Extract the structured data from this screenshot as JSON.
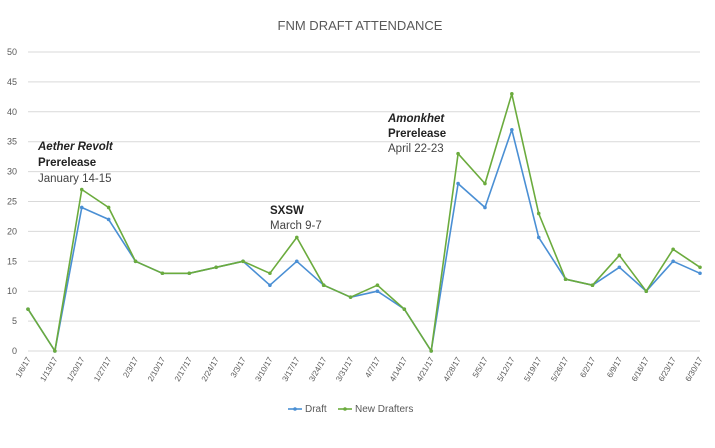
{
  "chart_data": {
    "type": "line",
    "title": "FNM DRAFT ATTENDANCE",
    "xlabel": "",
    "ylabel": "",
    "ylim": [
      0,
      50
    ],
    "yticks": [
      0,
      5,
      10,
      15,
      20,
      25,
      30,
      35,
      40,
      45,
      50
    ],
    "grid": true,
    "legend_position": "bottom",
    "categories": [
      "1/6/17",
      "1/13/17",
      "1/20/17",
      "1/27/17",
      "2/3/17",
      "2/10/17",
      "2/17/17",
      "2/24/17",
      "3/3/17",
      "3/10/17",
      "3/17/17",
      "3/24/17",
      "3/31/17",
      "4/7/17",
      "4/14/17",
      "4/21/17",
      "4/28/17",
      "5/5/17",
      "5/12/17",
      "5/19/17",
      "5/26/17",
      "6/2/17",
      "6/9/17",
      "6/16/17",
      "6/23/17",
      "6/30/17"
    ],
    "series": [
      {
        "name": "Draft",
        "color": "#4a8fd4",
        "values": [
          7,
          0,
          24,
          22,
          15,
          13,
          13,
          14,
          15,
          11,
          15,
          11,
          9,
          10,
          7,
          0,
          28,
          24,
          37,
          19,
          12,
          11,
          14,
          10,
          15,
          13
        ]
      },
      {
        "name": "New Drafters",
        "color": "#6bab3d",
        "values": [
          7,
          0,
          27,
          24,
          15,
          13,
          13,
          14,
          15,
          13,
          19,
          11,
          9,
          11,
          7,
          0,
          33,
          28,
          43,
          23,
          12,
          11,
          16,
          10,
          17,
          14
        ]
      }
    ],
    "annotations": [
      {
        "lines": [
          "Aether Revolt",
          "Prerelease",
          "January 14-15"
        ],
        "italic_line": 0,
        "bold_lines": [
          0,
          1
        ]
      },
      {
        "lines": [
          "SXSW",
          "March 9-7"
        ],
        "italic_line": -1,
        "bold_lines": [
          0
        ]
      },
      {
        "lines": [
          "Amonkhet",
          "Prerelease",
          "April 22-23"
        ],
        "italic_line": 0,
        "bold_lines": [
          0,
          1
        ]
      }
    ]
  }
}
